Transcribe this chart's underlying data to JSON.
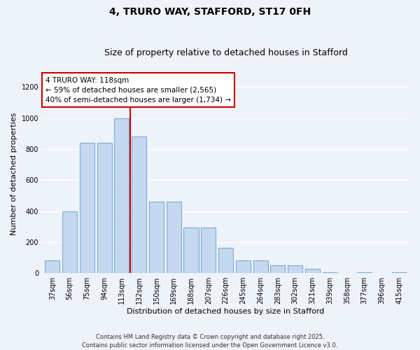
{
  "title": "4, TRURO WAY, STAFFORD, ST17 0FH",
  "subtitle": "Size of property relative to detached houses in Stafford",
  "xlabel": "Distribution of detached houses by size in Stafford",
  "ylabel": "Number of detached properties",
  "categories": [
    "37sqm",
    "56sqm",
    "75sqm",
    "94sqm",
    "113sqm",
    "132sqm",
    "150sqm",
    "169sqm",
    "188sqm",
    "207sqm",
    "226sqm",
    "245sqm",
    "264sqm",
    "283sqm",
    "302sqm",
    "321sqm",
    "339sqm",
    "358sqm",
    "377sqm",
    "396sqm",
    "415sqm"
  ],
  "values": [
    80,
    400,
    840,
    840,
    1000,
    880,
    460,
    460,
    295,
    295,
    165,
    80,
    80,
    50,
    50,
    30,
    5,
    0,
    5,
    0,
    5
  ],
  "bar_color": "#c5d8f0",
  "bar_edge_color": "#7aadd4",
  "vline_color": "#cc0000",
  "vline_x_index": 4.5,
  "annotation_text": "4 TRURO WAY: 118sqm\n← 59% of detached houses are smaller (2,565)\n40% of semi-detached houses are larger (1,734) →",
  "annotation_box_color": "#ffffff",
  "annotation_box_edge": "#cc0000",
  "ylim": [
    0,
    1280
  ],
  "yticks": [
    0,
    200,
    400,
    600,
    800,
    1000,
    1200
  ],
  "background_color": "#eef2f9",
  "grid_color": "#ffffff",
  "footer": "Contains HM Land Registry data © Crown copyright and database right 2025.\nContains public sector information licensed under the Open Government Licence v3.0.",
  "title_fontsize": 10,
  "subtitle_fontsize": 9,
  "xlabel_fontsize": 8,
  "ylabel_fontsize": 8,
  "tick_fontsize": 7,
  "annot_fontsize": 7.5,
  "footer_fontsize": 6
}
